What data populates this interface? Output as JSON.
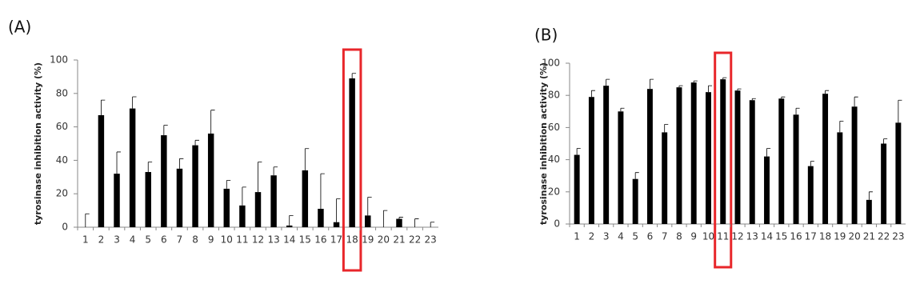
{
  "chart_data": [
    {
      "type": "bar",
      "title": "(A)",
      "y_label": "tyrosinase inhibition activity (%)",
      "categories": [
        "1",
        "2",
        "3",
        "4",
        "5",
        "6",
        "7",
        "8",
        "9",
        "10",
        "11",
        "12",
        "13",
        "14",
        "15",
        "16",
        "17",
        "18",
        "19",
        "20",
        "21",
        "22",
        "23"
      ],
      "values": [
        0,
        67,
        32,
        71,
        33,
        55,
        35,
        49,
        56,
        23,
        13,
        21,
        31,
        1,
        34,
        11,
        3,
        89,
        7,
        0,
        5,
        0,
        0
      ],
      "errors": [
        8,
        9,
        13,
        7,
        6,
        6,
        6,
        3,
        14,
        5,
        11,
        18,
        5,
        6,
        13,
        21,
        14,
        3,
        11,
        10,
        1,
        5,
        3
      ],
      "color": "#000000",
      "ylim": [
        0,
        100
      ],
      "yticks": [
        0,
        20,
        40,
        60,
        80,
        100
      ],
      "highlight": {
        "category": "18",
        "color": "#e8262a"
      }
    },
    {
      "type": "bar",
      "title": "(B)",
      "y_label": "tyrosinase inhibition activity (%)",
      "categories": [
        "1",
        "2",
        "3",
        "4",
        "5",
        "6",
        "7",
        "8",
        "9",
        "10",
        "11",
        "12",
        "13",
        "14",
        "15",
        "16",
        "17",
        "18",
        "19",
        "20",
        "21",
        "22",
        "23"
      ],
      "values": [
        43,
        79,
        86,
        70,
        28,
        84,
        57,
        85,
        88,
        82,
        90,
        83,
        77,
        42,
        78,
        68,
        36,
        81,
        57,
        73,
        15,
        50,
        63
      ],
      "errors": [
        4,
        4,
        4,
        2,
        4,
        6,
        5,
        1,
        1,
        4,
        1,
        1,
        1,
        5,
        1,
        4,
        3,
        2,
        7,
        6,
        5,
        3,
        14
      ],
      "color": "#000000",
      "ylim": [
        0,
        100
      ],
      "yticks": [
        0,
        20,
        40,
        60,
        80,
        100
      ],
      "highlight": {
        "category": "11",
        "color": "#e8262a"
      }
    }
  ]
}
